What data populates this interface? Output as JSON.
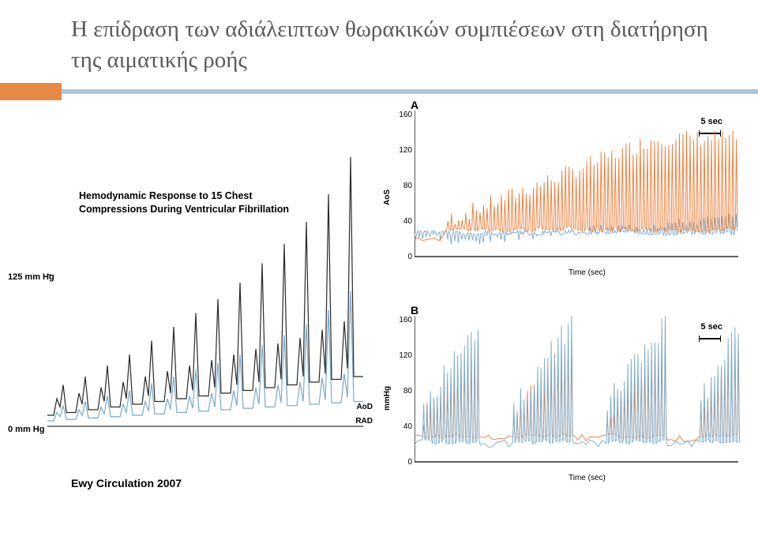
{
  "title": "Η επίδραση των αδιάλειπτων θωρακικών συμπιέσεων στη διατήρηση της αιματικής ροής",
  "left_chart": {
    "type": "line",
    "title_line1": "Hemodynamic Response to 15 Chest",
    "title_line2": "Compressions During Ventricular Fibrillation",
    "y_top_label": "125 mm Hg",
    "y_bot_label": "0  mm Hg",
    "trace_labels": {
      "aod": "AoD",
      "rad": "RAD"
    },
    "colors": {
      "aod": "#2a2a2a",
      "rad": "#7aa9cc",
      "axis": "#000000"
    },
    "aod_trace": [
      [
        0,
        8
      ],
      [
        8,
        8
      ],
      [
        12,
        20
      ],
      [
        16,
        14
      ],
      [
        20,
        30
      ],
      [
        24,
        10
      ],
      [
        28,
        10
      ],
      [
        36,
        10
      ],
      [
        40,
        24
      ],
      [
        44,
        16
      ],
      [
        48,
        36
      ],
      [
        52,
        12
      ],
      [
        56,
        12
      ],
      [
        64,
        12
      ],
      [
        68,
        28
      ],
      [
        72,
        18
      ],
      [
        76,
        44
      ],
      [
        80,
        14
      ],
      [
        84,
        14
      ],
      [
        92,
        14
      ],
      [
        96,
        32
      ],
      [
        100,
        20
      ],
      [
        104,
        52
      ],
      [
        108,
        16
      ],
      [
        112,
        16
      ],
      [
        120,
        16
      ],
      [
        124,
        36
      ],
      [
        128,
        22
      ],
      [
        132,
        62
      ],
      [
        136,
        18
      ],
      [
        140,
        18
      ],
      [
        148,
        18
      ],
      [
        152,
        40
      ],
      [
        156,
        24
      ],
      [
        160,
        72
      ],
      [
        164,
        20
      ],
      [
        168,
        20
      ],
      [
        176,
        20
      ],
      [
        180,
        44
      ],
      [
        184,
        26
      ],
      [
        188,
        82
      ],
      [
        192,
        22
      ],
      [
        196,
        22
      ],
      [
        204,
        22
      ],
      [
        208,
        48
      ],
      [
        212,
        28
      ],
      [
        216,
        92
      ],
      [
        220,
        24
      ],
      [
        224,
        24
      ],
      [
        232,
        24
      ],
      [
        236,
        52
      ],
      [
        240,
        30
      ],
      [
        244,
        104
      ],
      [
        248,
        26
      ],
      [
        252,
        26
      ],
      [
        260,
        26
      ],
      [
        264,
        56
      ],
      [
        268,
        32
      ],
      [
        272,
        118
      ],
      [
        276,
        28
      ],
      [
        280,
        28
      ],
      [
        288,
        28
      ],
      [
        292,
        60
      ],
      [
        296,
        34
      ],
      [
        300,
        132
      ],
      [
        304,
        30
      ],
      [
        308,
        30
      ],
      [
        316,
        30
      ],
      [
        320,
        64
      ],
      [
        324,
        36
      ],
      [
        328,
        148
      ],
      [
        332,
        32
      ],
      [
        336,
        32
      ],
      [
        344,
        32
      ],
      [
        348,
        70
      ],
      [
        352,
        38
      ],
      [
        356,
        168
      ],
      [
        360,
        34
      ],
      [
        364,
        34
      ],
      [
        372,
        34
      ],
      [
        376,
        76
      ],
      [
        380,
        42
      ],
      [
        384,
        195
      ],
      [
        388,
        36
      ],
      [
        392,
        36
      ],
      [
        400,
        36
      ]
    ],
    "rad_trace": [
      [
        0,
        4
      ],
      [
        8,
        4
      ],
      [
        12,
        10
      ],
      [
        16,
        7
      ],
      [
        20,
        15
      ],
      [
        24,
        5
      ],
      [
        28,
        5
      ],
      [
        36,
        5
      ],
      [
        40,
        12
      ],
      [
        44,
        8
      ],
      [
        48,
        18
      ],
      [
        52,
        6
      ],
      [
        56,
        6
      ],
      [
        64,
        6
      ],
      [
        68,
        14
      ],
      [
        72,
        9
      ],
      [
        76,
        22
      ],
      [
        80,
        7
      ],
      [
        84,
        7
      ],
      [
        92,
        7
      ],
      [
        96,
        16
      ],
      [
        100,
        10
      ],
      [
        104,
        26
      ],
      [
        108,
        8
      ],
      [
        112,
        8
      ],
      [
        120,
        8
      ],
      [
        124,
        18
      ],
      [
        128,
        11
      ],
      [
        132,
        31
      ],
      [
        136,
        9
      ],
      [
        140,
        9
      ],
      [
        148,
        9
      ],
      [
        152,
        20
      ],
      [
        156,
        12
      ],
      [
        160,
        36
      ],
      [
        164,
        10
      ],
      [
        168,
        10
      ],
      [
        176,
        10
      ],
      [
        180,
        22
      ],
      [
        184,
        13
      ],
      [
        188,
        41
      ],
      [
        192,
        11
      ],
      [
        196,
        11
      ],
      [
        204,
        11
      ],
      [
        208,
        24
      ],
      [
        212,
        14
      ],
      [
        216,
        46
      ],
      [
        220,
        12
      ],
      [
        224,
        12
      ],
      [
        232,
        12
      ],
      [
        236,
        26
      ],
      [
        240,
        15
      ],
      [
        244,
        52
      ],
      [
        248,
        13
      ],
      [
        252,
        13
      ],
      [
        260,
        13
      ],
      [
        264,
        28
      ],
      [
        268,
        16
      ],
      [
        272,
        59
      ],
      [
        276,
        14
      ],
      [
        280,
        14
      ],
      [
        288,
        14
      ],
      [
        292,
        30
      ],
      [
        296,
        17
      ],
      [
        300,
        66
      ],
      [
        304,
        15
      ],
      [
        308,
        15
      ],
      [
        316,
        15
      ],
      [
        320,
        32
      ],
      [
        324,
        18
      ],
      [
        328,
        74
      ],
      [
        332,
        16
      ],
      [
        336,
        16
      ],
      [
        344,
        16
      ],
      [
        348,
        35
      ],
      [
        352,
        19
      ],
      [
        356,
        84
      ],
      [
        360,
        17
      ],
      [
        364,
        17
      ],
      [
        372,
        17
      ],
      [
        376,
        38
      ],
      [
        380,
        21
      ],
      [
        384,
        98
      ],
      [
        388,
        18
      ],
      [
        392,
        18
      ],
      [
        400,
        18
      ]
    ]
  },
  "panel_a": {
    "type": "line",
    "label": "A",
    "ylabel": "AoS",
    "xlabel": "Time (sec)",
    "time_annot": "5 sec",
    "ylim": [
      0,
      160
    ],
    "ytick_step": 40,
    "colors": {
      "orange": "#f07830",
      "blue": "#7aa9cc",
      "axis": "#000000",
      "grid": "#dddddd"
    }
  },
  "panel_b": {
    "type": "line",
    "label": "B",
    "ylabel": "mmHg",
    "xlabel": "Time (sec)",
    "time_annot": "5 sec",
    "ylim": [
      0,
      160
    ],
    "ytick_step": 40,
    "colors": {
      "orange": "#f07830",
      "blue": "#7aa9cc",
      "axis": "#000000"
    }
  },
  "citation": "Ewy Circulation 2007",
  "styling": {
    "background": "#ffffff",
    "title_color": "#5a5a5a",
    "title_fontsize": 29,
    "accent_orange": "#e78946",
    "accent_blue": "#b0c4d8"
  }
}
